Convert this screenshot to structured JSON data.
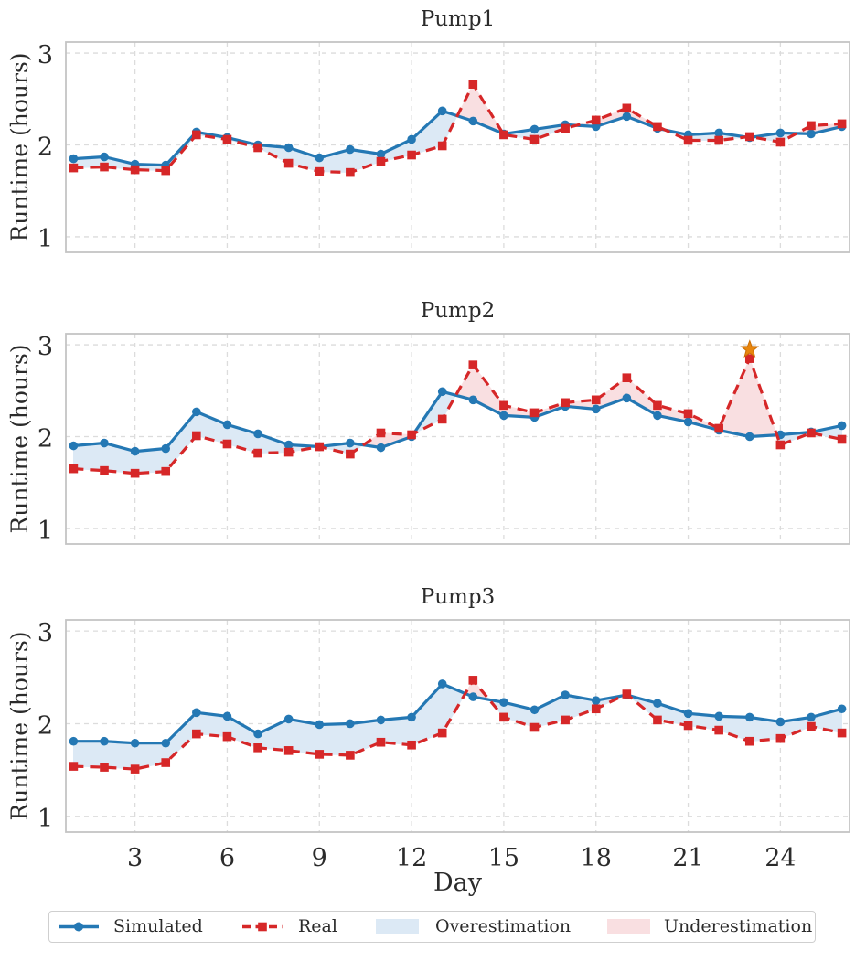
{
  "axes": {
    "ylabel": "Runtime (hours)",
    "xlabel": "Day",
    "y_ticks": [
      1,
      2,
      3
    ],
    "x_ticks": [
      3,
      6,
      9,
      12,
      15,
      18,
      21,
      24
    ],
    "ylim": [
      0.83,
      3.12
    ],
    "xlim": [
      0.75,
      26.25
    ],
    "grid": "dashed"
  },
  "legend": {
    "simulated": "Simulated",
    "real": "Real",
    "overestimation": "Overestimation",
    "underestimation": "Underestimation",
    "position": "bottom"
  },
  "colors": {
    "simulated": "#2478b4",
    "real": "#d62728",
    "overestimation": "#dce9f5",
    "underestimation": "#f9dfe1",
    "star": "#e8860d",
    "grid": "#dcdcdc",
    "frame": "#c4c4c4",
    "text": "#2b2b2b"
  },
  "chart_data": [
    {
      "type": "line",
      "title": "Pump1",
      "x": [
        1,
        2,
        3,
        4,
        5,
        6,
        7,
        8,
        9,
        10,
        11,
        12,
        13,
        14,
        15,
        16,
        17,
        18,
        19,
        20,
        21,
        22,
        23,
        24,
        25,
        26
      ],
      "series": [
        {
          "name": "Simulated",
          "values": [
            1.85,
            1.87,
            1.79,
            1.78,
            2.14,
            2.08,
            2.0,
            1.97,
            1.86,
            1.95,
            1.9,
            2.06,
            2.37,
            2.26,
            2.12,
            2.17,
            2.22,
            2.2,
            2.31,
            2.18,
            2.11,
            2.13,
            2.08,
            2.13,
            2.12,
            2.2
          ]
        },
        {
          "name": "Real",
          "values": [
            1.75,
            1.76,
            1.73,
            1.72,
            2.11,
            2.06,
            1.97,
            1.8,
            1.71,
            1.7,
            1.82,
            1.89,
            1.99,
            2.66,
            2.11,
            2.06,
            2.18,
            2.27,
            2.4,
            2.2,
            2.05,
            2.05,
            2.09,
            2.03,
            2.21,
            2.23
          ]
        }
      ],
      "annotations": []
    },
    {
      "type": "line",
      "title": "Pump2",
      "x": [
        1,
        2,
        3,
        4,
        5,
        6,
        7,
        8,
        9,
        10,
        11,
        12,
        13,
        14,
        15,
        16,
        17,
        18,
        19,
        20,
        21,
        22,
        23,
        24,
        25,
        26
      ],
      "series": [
        {
          "name": "Simulated",
          "values": [
            1.9,
            1.93,
            1.84,
            1.87,
            2.27,
            2.13,
            2.03,
            1.91,
            1.89,
            1.93,
            1.88,
            2.0,
            2.49,
            2.4,
            2.23,
            2.21,
            2.33,
            2.3,
            2.42,
            2.23,
            2.16,
            2.07,
            2.0,
            2.02,
            2.05,
            2.12
          ]
        },
        {
          "name": "Real",
          "values": [
            1.65,
            1.63,
            1.6,
            1.62,
            2.01,
            1.92,
            1.82,
            1.83,
            1.89,
            1.81,
            2.04,
            2.02,
            2.19,
            2.78,
            2.34,
            2.26,
            2.37,
            2.4,
            2.64,
            2.34,
            2.25,
            2.09,
            2.85,
            1.91,
            2.04,
            1.97
          ]
        }
      ],
      "annotations": [
        {
          "marker": "star",
          "day": 23,
          "value": 2.95
        }
      ]
    },
    {
      "type": "line",
      "title": "Pump3",
      "x": [
        1,
        2,
        3,
        4,
        5,
        6,
        7,
        8,
        9,
        10,
        11,
        12,
        13,
        14,
        15,
        16,
        17,
        18,
        19,
        20,
        21,
        22,
        23,
        24,
        25,
        26
      ],
      "series": [
        {
          "name": "Simulated",
          "values": [
            1.81,
            1.81,
            1.79,
            1.79,
            2.12,
            2.08,
            1.89,
            2.05,
            1.99,
            2.0,
            2.04,
            2.07,
            2.43,
            2.29,
            2.23,
            2.15,
            2.31,
            2.25,
            2.31,
            2.22,
            2.11,
            2.08,
            2.07,
            2.02,
            2.07,
            2.16
          ]
        },
        {
          "name": "Real",
          "values": [
            1.54,
            1.53,
            1.51,
            1.58,
            1.89,
            1.86,
            1.74,
            1.71,
            1.67,
            1.66,
            1.8,
            1.77,
            1.9,
            2.47,
            2.07,
            1.96,
            2.04,
            2.16,
            2.32,
            2.04,
            1.98,
            1.93,
            1.81,
            1.84,
            1.97,
            1.9
          ]
        }
      ],
      "annotations": []
    }
  ]
}
